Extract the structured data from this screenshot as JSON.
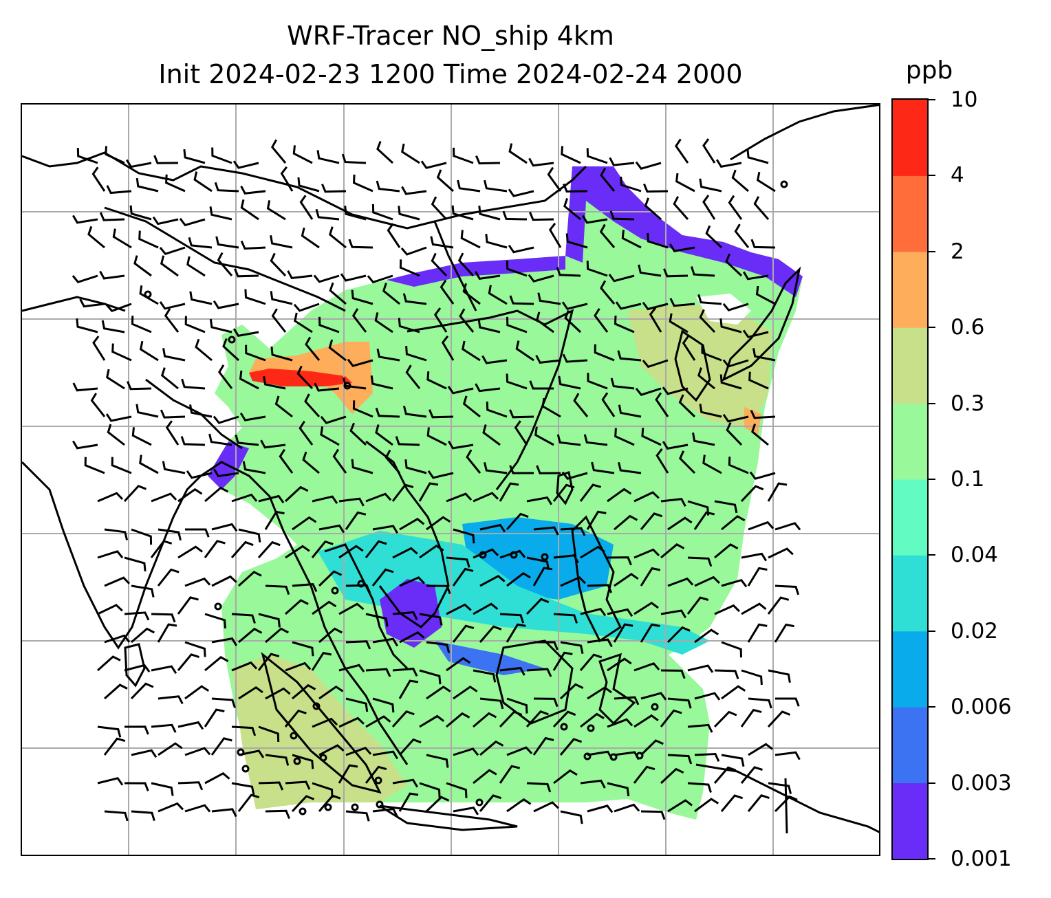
{
  "title": {
    "line1": "WRF-Tracer NO_ship 4km",
    "line2": "Init 2024-02-23 1200 Time 2024-02-24 2000"
  },
  "colorbar": {
    "unit": "ppb",
    "ticks": [
      "0.001",
      "0.003",
      "0.006",
      "0.02",
      "0.04",
      "0.1",
      "0.3",
      "0.6",
      "2",
      "4",
      "10"
    ],
    "colors": [
      "#6a2cf7",
      "#3b73f2",
      "#09abeb",
      "#2fdfd5",
      "#62fbc2",
      "#98f89a",
      "#c9e08a",
      "#fead5a",
      "#fe6d3a",
      "#fe2816"
    ]
  },
  "map": {
    "gridlines": true,
    "gridline_color": "#aaaaaa",
    "coastline_color": "#000000",
    "field_levels": {
      "background": "#98f89a",
      "low_band": "#09abeb",
      "edge": "#6a2cf7",
      "mid": "#62fbc2",
      "high": "#c9e08a",
      "peak": "#fead5a",
      "max": "#fe2816"
    }
  }
}
